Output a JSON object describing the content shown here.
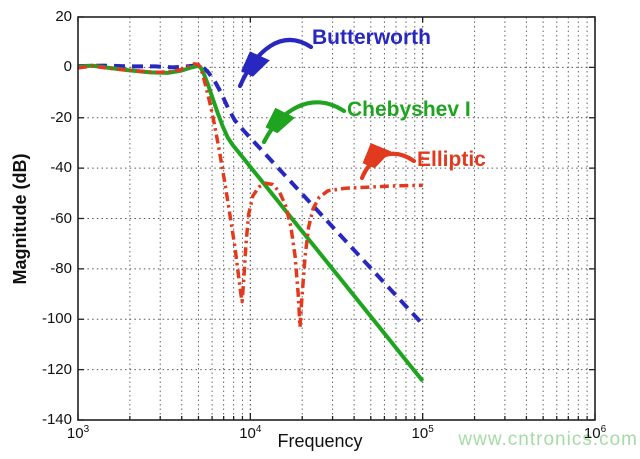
{
  "watermark": {
    "text": "www.cntronics.com",
    "color": "#a5dba5"
  },
  "chart_data": {
    "type": "line",
    "title": "",
    "xlabel": "Frequency",
    "ylabel": "Magnitude (dB)",
    "x_scale": "log10",
    "xlim_log10": [
      3,
      6
    ],
    "ylim": [
      -140,
      20
    ],
    "grid": true,
    "border_color": "#222222",
    "grid_color": "#666666",
    "xtick_labels": [
      "10³",
      "10⁴",
      "10⁵",
      "10⁶"
    ],
    "xtick_log10": [
      3,
      4,
      5,
      6
    ],
    "ytick_values": [
      20,
      0,
      -20,
      -40,
      -60,
      -80,
      -100,
      -120,
      -140
    ],
    "legend_style": "inline-annotations",
    "annotations": [
      {
        "label": "Butterworth",
        "color": "#2828c0"
      },
      {
        "label": "Chebyshev I",
        "color": "#1ea41e"
      },
      {
        "label": "Elliptic",
        "color": "#e23a1e"
      }
    ],
    "series": [
      {
        "name": "Butterworth",
        "color": "#2828c0",
        "style": "dashed",
        "width": 4,
        "points": [
          [
            3.0,
            0.5
          ],
          [
            3.15,
            0.7
          ],
          [
            3.3,
            0.4
          ],
          [
            3.45,
            0.4
          ],
          [
            3.55,
            0.0
          ],
          [
            3.63,
            0.4
          ],
          [
            3.69,
            0.8
          ],
          [
            3.72,
            0.2
          ],
          [
            3.75,
            -1.5
          ],
          [
            3.79,
            -5
          ],
          [
            3.83,
            -10
          ],
          [
            3.87,
            -16
          ],
          [
            3.91,
            -21
          ],
          [
            3.96,
            -25
          ],
          [
            4.0,
            -28
          ],
          [
            4.1,
            -35.4
          ],
          [
            4.2,
            -42.8
          ],
          [
            4.3,
            -50.2
          ],
          [
            4.4,
            -57.6
          ],
          [
            4.5,
            -65
          ],
          [
            4.6,
            -72.4
          ],
          [
            4.7,
            -79.8
          ],
          [
            4.8,
            -87.2
          ],
          [
            4.9,
            -94.6
          ],
          [
            5.0,
            -102
          ]
        ]
      },
      {
        "name": "Chebyshev I",
        "color": "#1ea41e",
        "style": "solid",
        "width": 4,
        "points": [
          [
            3.0,
            0.2
          ],
          [
            3.08,
            0.7
          ],
          [
            3.18,
            -0.2
          ],
          [
            3.3,
            -1.2
          ],
          [
            3.42,
            -2.0
          ],
          [
            3.52,
            -2.2
          ],
          [
            3.6,
            -1.3
          ],
          [
            3.66,
            0.0
          ],
          [
            3.695,
            0.6
          ],
          [
            3.71,
            0.1
          ],
          [
            3.73,
            -2.5
          ],
          [
            3.755,
            -7
          ],
          [
            3.78,
            -12
          ],
          [
            3.81,
            -18
          ],
          [
            3.84,
            -23.5
          ],
          [
            3.87,
            -28
          ],
          [
            3.9,
            -31
          ],
          [
            3.95,
            -35.2
          ],
          [
            4.0,
            -39.5
          ],
          [
            4.1,
            -48
          ],
          [
            4.2,
            -56.5
          ],
          [
            4.3,
            -65
          ],
          [
            4.4,
            -73.5
          ],
          [
            4.5,
            -82
          ],
          [
            4.6,
            -90.5
          ],
          [
            4.7,
            -99
          ],
          [
            4.8,
            -107.5
          ],
          [
            4.9,
            -116
          ],
          [
            5.0,
            -124.5
          ]
        ]
      },
      {
        "name": "Elliptic",
        "color": "#e23a1e",
        "style": "dashdot",
        "width": 3.5,
        "points": [
          [
            3.0,
            -0.2
          ],
          [
            3.08,
            0.5
          ],
          [
            3.2,
            -0.5
          ],
          [
            3.32,
            -1.3
          ],
          [
            3.45,
            -2.0
          ],
          [
            3.55,
            -1.7
          ],
          [
            3.62,
            -0.4
          ],
          [
            3.675,
            1.4
          ],
          [
            3.7,
            1.1
          ],
          [
            3.72,
            -2
          ],
          [
            3.74,
            -7
          ],
          [
            3.765,
            -14
          ],
          [
            3.79,
            -22
          ],
          [
            3.82,
            -33
          ],
          [
            3.85,
            -45
          ],
          [
            3.88,
            -58
          ],
          [
            3.91,
            -71
          ],
          [
            3.93,
            -82
          ],
          [
            3.945,
            -90
          ],
          [
            3.952,
            -93
          ],
          [
            3.962,
            -84
          ],
          [
            3.975,
            -70
          ],
          [
            3.99,
            -58.5
          ],
          [
            4.015,
            -51
          ],
          [
            4.05,
            -47.5
          ],
          [
            4.09,
            -46
          ],
          [
            4.13,
            -46.5
          ],
          [
            4.17,
            -49.5
          ],
          [
            4.205,
            -55
          ],
          [
            4.235,
            -63
          ],
          [
            4.26,
            -75
          ],
          [
            4.278,
            -90
          ],
          [
            4.288,
            -103
          ],
          [
            4.3,
            -91
          ],
          [
            4.318,
            -75
          ],
          [
            4.338,
            -63.5
          ],
          [
            4.365,
            -56
          ],
          [
            4.4,
            -51.5
          ],
          [
            4.45,
            -49
          ],
          [
            4.55,
            -48
          ],
          [
            4.7,
            -47.5
          ],
          [
            4.85,
            -47
          ],
          [
            5.0,
            -46.8
          ]
        ]
      }
    ]
  }
}
